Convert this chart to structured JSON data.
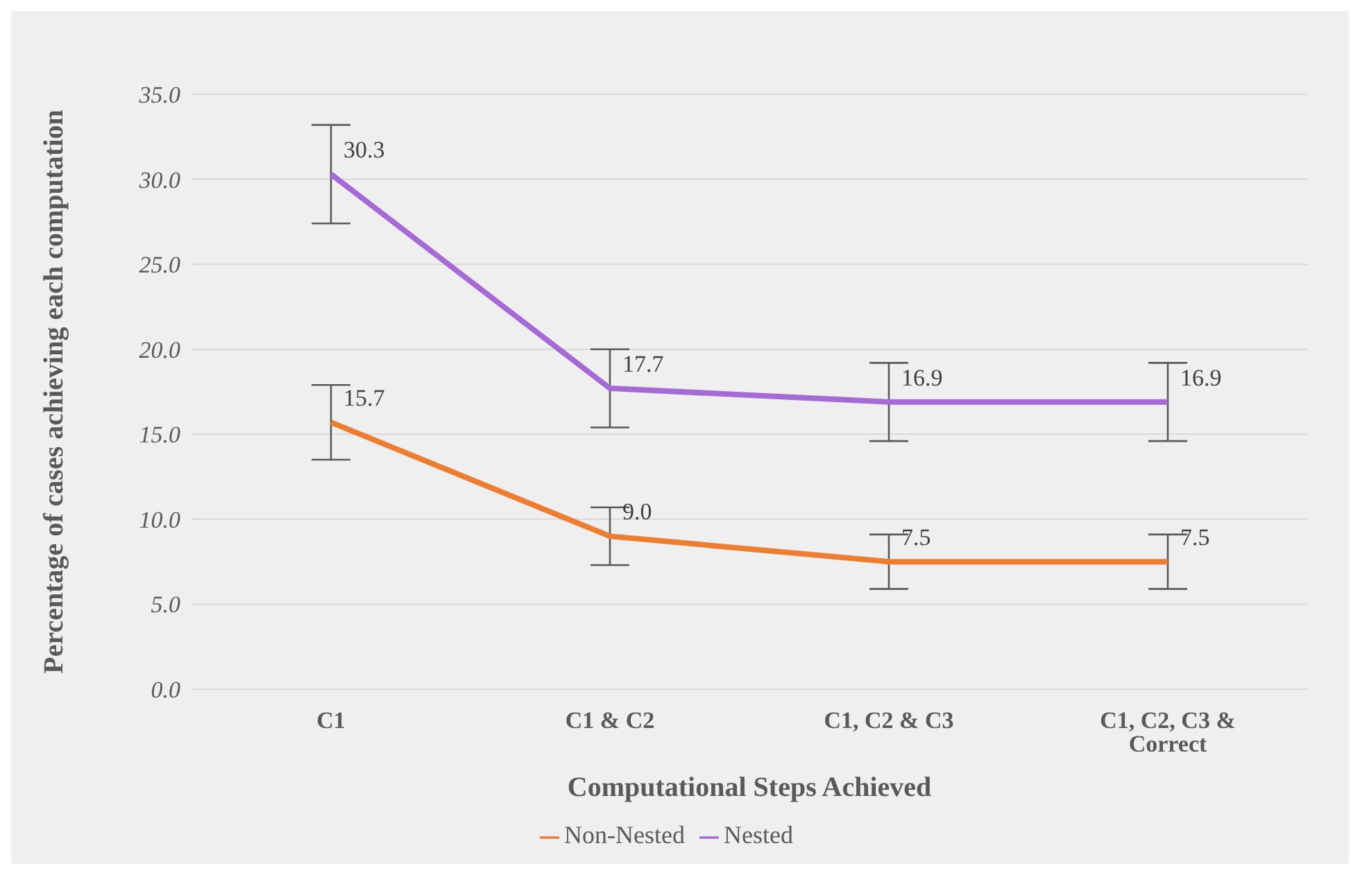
{
  "chart_data": {
    "type": "line",
    "xlabel": "Computational Steps Achieved",
    "ylabel": "Percentage of cases achieving each computation",
    "categories": [
      "C1",
      "C1 & C2",
      "C1, C2 & C3",
      "C1, C2, C3 & Correct"
    ],
    "series": [
      {
        "name": "Non-Nested",
        "color": "#ed7d31",
        "values": [
          15.7,
          9.0,
          7.5,
          7.5
        ],
        "value_labels": [
          "15.7",
          "9.0",
          "7.5",
          "7.5"
        ],
        "errors": [
          2.2,
          1.7,
          1.6,
          1.6
        ]
      },
      {
        "name": "Nested",
        "color": "#a66ad6",
        "values": [
          30.3,
          17.7,
          16.9,
          16.9
        ],
        "value_labels": [
          "30.3",
          "17.7",
          "16.9",
          "16.9"
        ],
        "errors": [
          2.9,
          2.3,
          2.3,
          2.3
        ]
      }
    ],
    "ylim": [
      0,
      35
    ],
    "yticks": [
      {
        "value": 0,
        "label": "0.0"
      },
      {
        "value": 5,
        "label": "5.0"
      },
      {
        "value": 10,
        "label": "10.0"
      },
      {
        "value": 15,
        "label": "15.0"
      },
      {
        "value": 20,
        "label": "20.0"
      },
      {
        "value": 25,
        "label": "25.0"
      },
      {
        "value": 30,
        "label": "30.0"
      },
      {
        "value": 35,
        "label": "35.0"
      }
    ],
    "grid": "y",
    "legend": "bottom",
    "marker": "none",
    "line_style": "solid"
  }
}
